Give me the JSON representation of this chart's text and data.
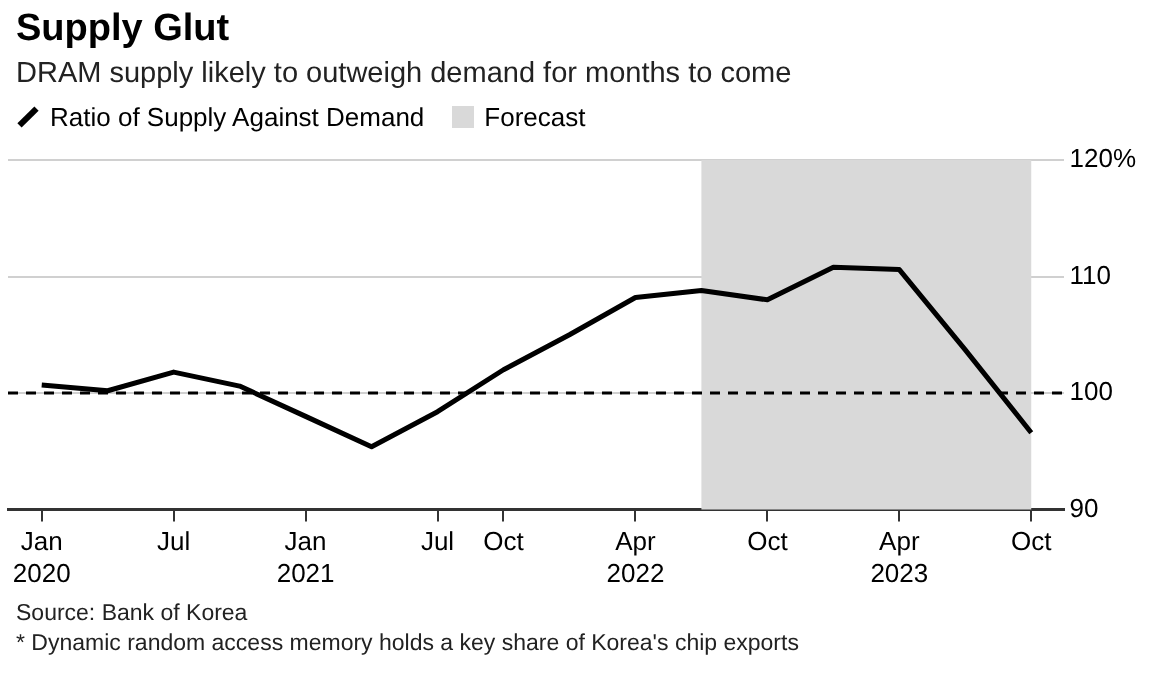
{
  "chart_data": {
    "type": "line",
    "title": "Supply Glut",
    "subtitle": "DRAM supply likely to outweigh demand for months to come",
    "x": [
      "2020-01",
      "2020-04",
      "2020-07",
      "2020-10",
      "2021-01",
      "2021-04",
      "2021-07",
      "2021-10",
      "2022-01",
      "2022-04",
      "2022-07",
      "2022-10",
      "2023-01",
      "2023-04",
      "2023-07",
      "2023-10"
    ],
    "series": [
      {
        "name": "Ratio of Supply Against Demand",
        "color": "#000000",
        "values": [
          100.7,
          100.2,
          101.8,
          100.6,
          98.0,
          95.4,
          98.4,
          102.0,
          105.0,
          108.2,
          108.8,
          108.0,
          110.8,
          110.6,
          103.7,
          96.6
        ]
      }
    ],
    "xlim": [
      "2019-11-15",
      "2023-11-15"
    ],
    "xticks": [
      {
        "value": "2020-01",
        "label": "Jan\n2020"
      },
      {
        "value": "2020-07",
        "label": "Jul"
      },
      {
        "value": "2021-01",
        "label": "Jan\n2021"
      },
      {
        "value": "2021-07",
        "label": "Jul"
      },
      {
        "value": "2021-10",
        "label": "Oct"
      },
      {
        "value": "2022-04",
        "label": "Apr\n2022"
      },
      {
        "value": "2022-10",
        "label": "Oct"
      },
      {
        "value": "2023-04",
        "label": "Apr\n2023"
      },
      {
        "value": "2023-10",
        "label": "Oct"
      }
    ],
    "ylim": [
      90,
      120
    ],
    "yticks": [
      90,
      100,
      110,
      {
        "value": 120,
        "label": "120%"
      }
    ],
    "bands": [
      {
        "axis": "x",
        "from": "2022-07",
        "to": "2023-10",
        "label": "Forecast",
        "color": "#d9d9d9"
      }
    ],
    "ref_lines": [
      {
        "axis": "y",
        "value": 100,
        "color": "#000000",
        "line_style": "dashed"
      }
    ],
    "grid": "y",
    "legend": "top left",
    "marker": "none",
    "line_style": "solid",
    "annotations": [
      "Source: Bank of Korea",
      "* Dynamic random access memory holds a key share of Korea's chip exports"
    ]
  }
}
